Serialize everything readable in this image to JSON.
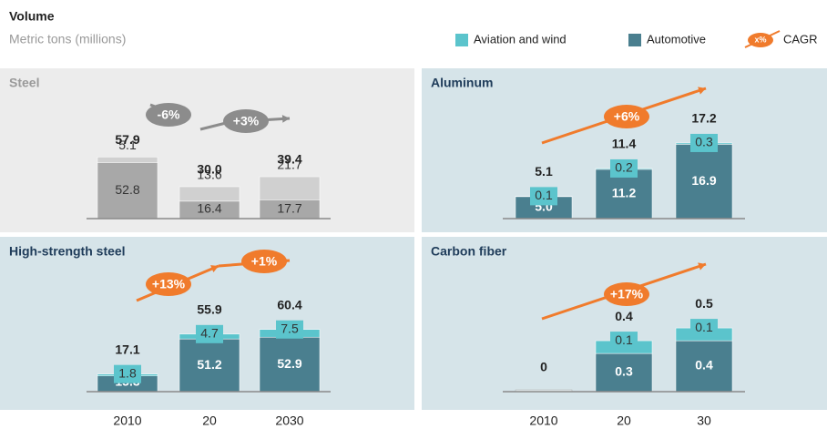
{
  "header": {
    "title": "Volume",
    "subtitle": "Metric tons (millions)"
  },
  "legend": [
    {
      "label": "Aviation and wind",
      "color": "#5bc4cc"
    },
    {
      "label": "Automotive",
      "color": "#4a7f8f"
    },
    {
      "label": "CAGR",
      "color": "#f07b2c",
      "icon_label": "x%"
    }
  ],
  "chart_data": [
    {
      "type": "bar",
      "stacked": true,
      "title": "Steel",
      "title_color": "#9a9a9a",
      "background": "#ececec",
      "ylim": [
        0,
        120
      ],
      "series": [
        {
          "color": "#a8a8a8",
          "values": [
            52.8,
            16.4,
            17.7
          ]
        },
        {
          "color": "#d0d0d0",
          "values": [
            5.1,
            13.6,
            21.7
          ]
        }
      ],
      "totals": {
        "values": [
          57.9,
          30,
          39.4
        ],
        "value_labels": [
          "57.9",
          "30.0",
          "39.4"
        ]
      },
      "cagr": [
        {
          "label": "-6%",
          "color": "#8c8c8c"
        },
        {
          "label": "+3%",
          "color": "#8c8c8c"
        }
      ]
    },
    {
      "type": "bar",
      "stacked": true,
      "title": "Aluminum",
      "title_color": "#1f3c5a",
      "background": "#d6e4e9",
      "ylim": [
        0,
        29
      ],
      "series": [
        {
          "color": "#4a7f8f",
          "values": [
            5,
            11.2,
            16.9
          ],
          "value_labels": [
            "5.0",
            "11.2",
            "16.9"
          ]
        },
        {
          "color": "#5bc4cc",
          "values": [
            0.1,
            0.2,
            0.3
          ]
        }
      ],
      "totals": {
        "values": [
          5.1,
          11.4,
          17.2
        ]
      },
      "cagr": [
        {
          "label": "+6%",
          "color": "#f07b2c"
        }
      ]
    },
    {
      "type": "bar",
      "stacked": true,
      "title": "High-strength steel",
      "title_color": "#1f3c5a",
      "background": "#d6e4e9",
      "ylim": [
        0,
        115
      ],
      "categories": [
        "2010",
        "20",
        "2030"
      ],
      "series": [
        {
          "color": "#4a7f8f",
          "values": [
            15.3,
            51.2,
            52.9
          ]
        },
        {
          "color": "#5bc4cc",
          "values": [
            1.8,
            4.7,
            7.5
          ]
        }
      ],
      "totals": {
        "values": [
          17.1,
          55.9,
          60.4
        ]
      },
      "cagr": [
        {
          "label": "+13%",
          "color": "#f07b2c"
        },
        {
          "label": "+1%",
          "color": "#f07b2c"
        }
      ]
    },
    {
      "type": "bar",
      "stacked": true,
      "title": "Carbon fiber",
      "title_color": "#1f3c5a",
      "background": "#d6e4e9",
      "ylim": [
        0,
        0.93
      ],
      "categories": [
        "2010",
        "20",
        "30"
      ],
      "series": [
        {
          "color": "#4a7f8f",
          "values": [
            null,
            0.3,
            0.4
          ]
        },
        {
          "color": "#5bc4cc",
          "values": [
            null,
            0.1,
            0.1
          ]
        }
      ],
      "totals": {
        "values": [
          0,
          0.4,
          0.5
        ]
      },
      "cagr": [
        {
          "label": "+17%",
          "color": "#f07b2c"
        }
      ]
    }
  ]
}
